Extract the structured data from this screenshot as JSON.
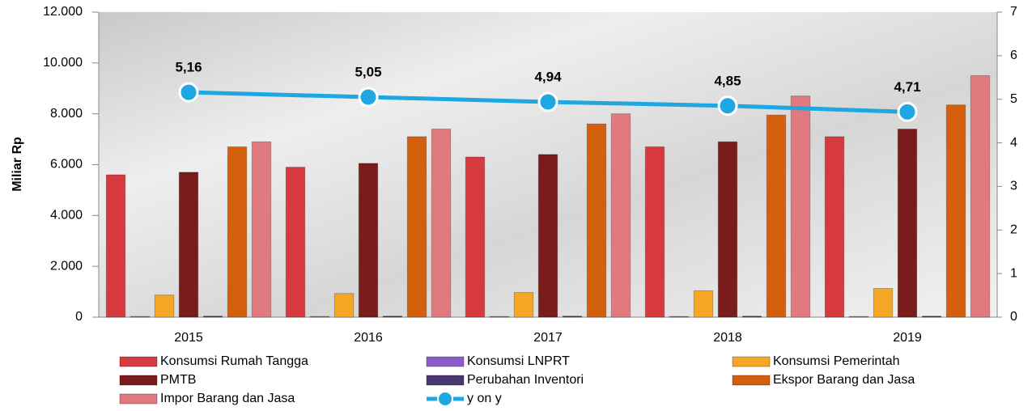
{
  "chart_data": {
    "type": "bar",
    "y_label": "Miliar Rp",
    "categories": [
      "2015",
      "2016",
      "2017",
      "2018",
      "2019"
    ],
    "series": [
      {
        "name": "Konsumsi Rumah Tangga",
        "color": "#d63a3f",
        "values": [
          5600,
          5900,
          6300,
          6700,
          7100
        ]
      },
      {
        "name": "Konsumsi LNPRT",
        "color": "#8a5cc8",
        "values": [
          30,
          30,
          30,
          30,
          30
        ]
      },
      {
        "name": "Konsumsi Pemerintah",
        "color": "#f5a623",
        "values": [
          870,
          930,
          970,
          1040,
          1130
        ]
      },
      {
        "name": "PMTB",
        "color": "#7a1c1c",
        "values": [
          5700,
          6050,
          6400,
          6900,
          7400
        ]
      },
      {
        "name": "Perubahan Inventori",
        "color": "#4b3770",
        "values": [
          40,
          40,
          40,
          40,
          40
        ]
      },
      {
        "name": "Ekspor Barang dan Jasa",
        "color": "#d4600e",
        "values": [
          6700,
          7100,
          7600,
          7950,
          8350
        ]
      },
      {
        "name": "Impor Barang dan Jasa",
        "color": "#e07a7e",
        "values": [
          6900,
          7400,
          8000,
          8700,
          9500
        ]
      },
      {
        "name": "y on y",
        "color": "#1ea7e1",
        "type": "line",
        "axis": "y2",
        "values": [
          5.16,
          5.05,
          4.94,
          4.85,
          4.71
        ],
        "value_labels": [
          "5,16",
          "5,05",
          "4,94",
          "4,85",
          "4,71"
        ]
      }
    ],
    "ylim": [
      0,
      12000
    ],
    "yticks": [
      0,
      {
        "value": 2000,
        "label": "2.000"
      },
      {
        "value": 4000,
        "label": "4.000"
      },
      {
        "value": 6000,
        "label": "6.000"
      },
      {
        "value": 8000,
        "label": "8.000"
      },
      {
        "value": 10000,
        "label": "10.000"
      },
      {
        "value": 12000,
        "label": "12.000"
      }
    ],
    "y2lim": [
      0,
      7
    ],
    "y2ticks": [
      0,
      1,
      2,
      3,
      4,
      5,
      6,
      7
    ],
    "legend": "bottom"
  }
}
